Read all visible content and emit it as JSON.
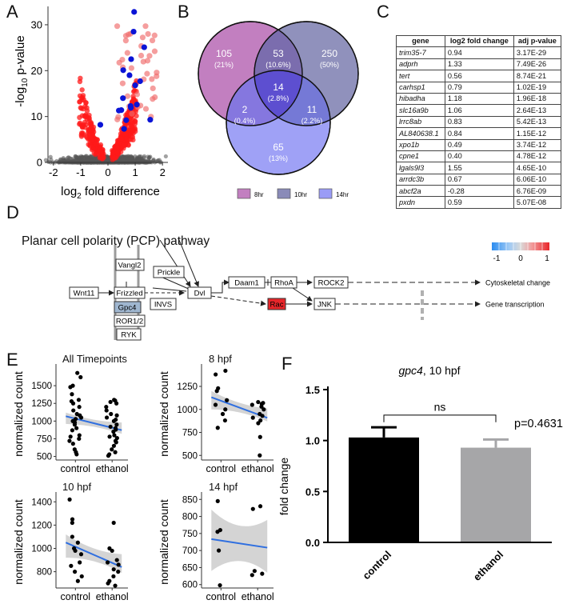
{
  "panels": {
    "a": "A",
    "b": "B",
    "c": "C",
    "d": "D",
    "e": "E",
    "f": "F"
  },
  "volcano": {
    "x_label_pre": "log",
    "x_label_sub": "2",
    "x_label_post": " fold difference",
    "y_label_pre": "-log",
    "y_label_sub": "10",
    "y_label_post": " p-value",
    "x_ticks": [
      "-2",
      "-1",
      "0",
      "1",
      "2"
    ],
    "y_ticks": [
      "0",
      "10",
      "20",
      "30"
    ]
  },
  "venn": {
    "circles": [
      {
        "name": "8hr",
        "color": "#c27fc0"
      },
      {
        "name": "10hr",
        "color": "#8a8bb8"
      },
      {
        "name": "14hr",
        "color": "#9a9cf6"
      }
    ],
    "regions": [
      {
        "count": "105",
        "pct": "(21%)"
      },
      {
        "count": "53",
        "pct": "(10.6%)"
      },
      {
        "count": "250",
        "pct": "(50%)"
      },
      {
        "count": "14",
        "pct": "(2.8%)"
      },
      {
        "count": "2",
        "pct": "(0.4%)"
      },
      {
        "count": "11",
        "pct": "(2.2%)"
      },
      {
        "count": "65",
        "pct": "(13%)"
      }
    ],
    "legend": [
      "8hr",
      "10hr",
      "14hr"
    ]
  },
  "gene_table": {
    "headers": [
      "gene",
      "log2 fold change",
      "adj p-value"
    ],
    "rows": [
      [
        "trim35-7",
        "0.94",
        "3.17E-29"
      ],
      [
        "adprh",
        "1.33",
        "7.49E-26"
      ],
      [
        "tert",
        "0.56",
        "8.74E-21"
      ],
      [
        "carhsp1",
        "0.79",
        "1.02E-19"
      ],
      [
        "hibadha",
        "1.18",
        "1.96E-18"
      ],
      [
        "slc16a9b",
        "1.06",
        "2.64E-13"
      ],
      [
        "lrrc8ab",
        "0.83",
        "5.42E-13"
      ],
      [
        "AL840638.1",
        "0.84",
        "1.15E-12"
      ],
      [
        "xpo1b",
        "0.49",
        "3.74E-12"
      ],
      [
        "cpne1",
        "0.40",
        "4.78E-12"
      ],
      [
        "lgals9l3",
        "1.55",
        "4.65E-10"
      ],
      [
        "arrdc3b",
        "0.67",
        "6.06E-10"
      ],
      [
        "abcf2a",
        "-0.28",
        "6.76E-09"
      ],
      [
        "pxdn",
        "0.59",
        "5.07E-08"
      ]
    ]
  },
  "pathway": {
    "title": "Planar cell polarity (PCP) pathway",
    "nodes": {
      "wnt11": "Wnt11",
      "vangl2": "Vangl2",
      "prickle": "Prickle",
      "frizzled": "Frizzled",
      "gpc4": "Gpc4",
      "ror": "ROR1/2",
      "ryk": "RYK",
      "invs": "INVS",
      "dvl": "Dvl",
      "daam1": "Daam1",
      "rhoa": "RhoA",
      "rock2": "ROCK2",
      "rac": "Rac",
      "jnk": "JNK"
    },
    "outputs": [
      "Cytoskeletal change",
      "Gene transcription"
    ],
    "scale_labels": [
      "-1",
      "0",
      "1"
    ]
  },
  "expression_plots": {
    "y_label": "normalized count",
    "x_labels": [
      "control",
      "ethanol"
    ],
    "plots": [
      {
        "title": "All Timepoints",
        "y_ticks": [
          "500",
          "750",
          "1000",
          "1250",
          "1500"
        ]
      },
      {
        "title": "8 hpf",
        "y_ticks": [
          "500",
          "750",
          "1000",
          "1250"
        ]
      },
      {
        "title": "10 hpf",
        "y_ticks": [
          "800",
          "1000",
          "1200",
          "1400"
        ]
      },
      {
        "title": "14 hpf",
        "y_ticks": [
          "600",
          "650",
          "700",
          "750",
          "800",
          "850"
        ]
      }
    ]
  },
  "chart_data": [
    {
      "type": "scatter",
      "name": "volcano",
      "xlim": [
        -2.2,
        2.2
      ],
      "ylim": [
        0,
        34
      ],
      "significant_blue": [
        [
          0.94,
          28.5
        ],
        [
          1.33,
          25.1
        ],
        [
          0.56,
          20.1
        ],
        [
          0.79,
          19.0
        ],
        [
          1.18,
          17.7
        ],
        [
          1.06,
          12.6
        ],
        [
          0.83,
          12.3
        ],
        [
          0.84,
          11.9
        ],
        [
          0.49,
          11.4
        ],
        [
          0.4,
          11.3
        ],
        [
          1.55,
          9.3
        ],
        [
          0.67,
          9.2
        ],
        [
          -0.28,
          8.2
        ],
        [
          0.59,
          7.3
        ],
        [
          0.96,
          32.8
        ],
        [
          1.0,
          16.8
        ],
        [
          0.55,
          14.0
        ],
        [
          0.85,
          22.5
        ]
      ]
    },
    {
      "type": "scatter",
      "name": "All Timepoints",
      "ylim": [
        450,
        1750
      ],
      "control": [
        1680,
        1620,
        1500,
        1480,
        1380,
        1300,
        1280,
        1250,
        1200,
        1150,
        1100,
        1080,
        1050,
        1030,
        1000,
        980,
        950,
        900,
        870,
        800,
        780,
        750,
        720,
        680,
        600,
        560,
        530
      ],
      "ethanol": [
        1300,
        1290,
        1270,
        1250,
        1200,
        1150,
        1100,
        1080,
        1050,
        1020,
        1000,
        950,
        920,
        900,
        880,
        850,
        800,
        780,
        760,
        720,
        700,
        650,
        600,
        560,
        530,
        510
      ],
      "fit": [
        1040,
        900
      ],
      "ci_low": [
        960,
        820
      ],
      "ci_high": [
        1120,
        980
      ]
    },
    {
      "type": "scatter",
      "name": "8 hpf",
      "ylim": [
        450,
        1450
      ],
      "control": [
        1420,
        1380,
        1230,
        1200,
        1100,
        1050,
        1000,
        950,
        880,
        800
      ],
      "ethanol": [
        1080,
        1070,
        1060,
        1050,
        1030,
        1000,
        950,
        930,
        910,
        880,
        850,
        700,
        500
      ],
      "fit": [
        1100,
        940
      ],
      "ci_low": [
        1000,
        870
      ],
      "ci_high": [
        1200,
        1010
      ]
    },
    {
      "type": "scatter",
      "name": "10 hpf",
      "ylim": [
        660,
        1450
      ],
      "control": [
        1420,
        1250,
        1220,
        1100,
        1050,
        1000,
        980,
        950,
        880,
        850,
        800,
        760,
        720
      ],
      "ethanol": [
        1220,
        1000,
        980,
        900,
        880,
        860,
        820,
        800,
        760,
        720,
        700,
        680
      ],
      "fit": [
        1020,
        870
      ],
      "ci_low": [
        920,
        790
      ],
      "ci_high": [
        1120,
        950
      ]
    },
    {
      "type": "scatter",
      "name": "14 hpf",
      "ylim": [
        590,
        860
      ],
      "control": [
        845,
        760,
        755,
        700,
        598
      ],
      "ethanol": [
        830,
        822,
        640,
        632,
        628
      ],
      "fit": [
        730,
        712
      ],
      "ci_low": [
        640,
        635
      ],
      "ci_high": [
        820,
        790
      ]
    },
    {
      "type": "bar",
      "name": "gpc4, 10 hpf",
      "title_italic": "gpc4",
      "title_rest": ", 10 hpf",
      "categories": [
        "control",
        "ethanol"
      ],
      "values": [
        1.03,
        0.93
      ],
      "errors": [
        0.1,
        0.08
      ],
      "colors": [
        "#000000",
        "#a6a6a8"
      ],
      "ylabel": "fold change",
      "ylim": [
        0,
        1.5
      ],
      "y_ticks": [
        "0.0",
        "0.5",
        "1.0",
        "1.5"
      ],
      "sig_label": "ns",
      "p_label": "p=0.4631"
    }
  ]
}
